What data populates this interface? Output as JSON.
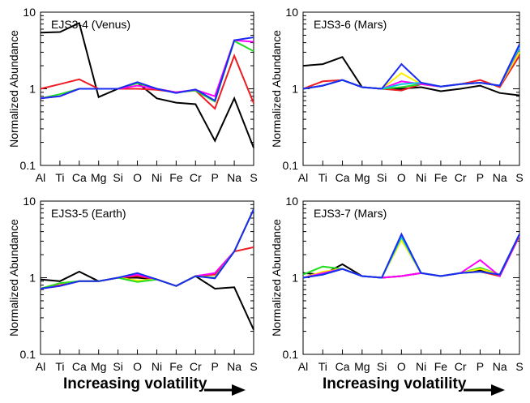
{
  "elements": [
    "Al",
    "Ti",
    "Ca",
    "Mg",
    "Si",
    "O",
    "Ni",
    "Fe",
    "Cr",
    "P",
    "Na",
    "S"
  ],
  "ylabel": "Normalized Abundance",
  "xlabel": "Increasing volatility",
  "y_ticks": [
    "0.1",
    "1",
    "10"
  ],
  "colors": {
    "black": "#000000",
    "red": "#ee1c24",
    "green": "#22dd22",
    "blue": "#1a2cf0",
    "magenta": "#ff00ff",
    "yellow": "#ffee00",
    "cyan": "#00c8e0"
  },
  "chart_data": [
    {
      "type": "line",
      "title": "EJS3-4 (Venus)",
      "ylabel": "Normalized Abundance",
      "yscale": "log",
      "ylim": [
        0.1,
        10
      ],
      "categories": [
        "Al",
        "Ti",
        "Ca",
        "Mg",
        "Si",
        "O",
        "Ni",
        "Fe",
        "Cr",
        "P",
        "Na",
        "S"
      ],
      "series": [
        {
          "name": "black",
          "color": "black",
          "values": [
            5.4,
            5.5,
            7.2,
            0.78,
            1.0,
            1.2,
            0.75,
            0.66,
            0.63,
            0.21,
            0.75,
            0.17
          ]
        },
        {
          "name": "red",
          "color": "red",
          "values": [
            1.0,
            1.15,
            1.33,
            1.0,
            1.0,
            1.0,
            0.97,
            0.9,
            0.95,
            0.55,
            2.7,
            0.65
          ]
        },
        {
          "name": "green",
          "color": "green",
          "values": [
            0.75,
            0.85,
            1.0,
            1.0,
            1.0,
            1.18,
            1.0,
            0.9,
            0.95,
            0.68,
            4.2,
            3.1
          ]
        },
        {
          "name": "magenta",
          "color": "magenta",
          "values": [
            0.75,
            0.8,
            1.0,
            1.0,
            1.0,
            1.1,
            1.0,
            0.9,
            0.97,
            0.8,
            4.3,
            4.1
          ]
        },
        {
          "name": "blue",
          "color": "blue",
          "values": [
            0.75,
            0.8,
            1.0,
            1.0,
            1.0,
            1.22,
            1.0,
            0.88,
            0.98,
            0.7,
            4.3,
            4.7
          ]
        }
      ]
    },
    {
      "type": "line",
      "title": "EJS3-6 (Mars)",
      "ylabel": "Normalized Abundance",
      "yscale": "log",
      "ylim": [
        0.1,
        10
      ],
      "categories": [
        "Al",
        "Ti",
        "Ca",
        "Mg",
        "Si",
        "O",
        "Ni",
        "Fe",
        "Cr",
        "P",
        "Na",
        "S"
      ],
      "series": [
        {
          "name": "black",
          "color": "black",
          "values": [
            2.0,
            2.1,
            2.6,
            1.05,
            1.0,
            1.0,
            1.05,
            0.93,
            1.0,
            1.1,
            0.88,
            0.82
          ]
        },
        {
          "name": "red",
          "color": "red",
          "values": [
            1.0,
            1.25,
            1.3,
            1.05,
            1.0,
            0.95,
            1.15,
            1.07,
            1.15,
            1.3,
            1.05,
            2.7
          ]
        },
        {
          "name": "green",
          "color": "green",
          "values": [
            1.0,
            1.1,
            1.3,
            1.05,
            1.0,
            1.05,
            1.15,
            1.07,
            1.15,
            1.2,
            1.1,
            3.2
          ]
        },
        {
          "name": "yellow",
          "color": "yellow",
          "values": [
            1.0,
            1.1,
            1.3,
            1.05,
            1.0,
            1.6,
            1.15,
            1.07,
            1.15,
            1.2,
            1.1,
            3.0
          ]
        },
        {
          "name": "magenta",
          "color": "magenta",
          "values": [
            1.0,
            1.1,
            1.3,
            1.05,
            1.0,
            1.25,
            1.15,
            1.07,
            1.15,
            1.2,
            1.1,
            3.4
          ]
        },
        {
          "name": "cyan",
          "color": "cyan",
          "values": [
            1.0,
            1.1,
            1.3,
            1.05,
            1.0,
            1.15,
            1.2,
            1.07,
            1.15,
            1.2,
            1.1,
            3.5
          ]
        },
        {
          "name": "blue",
          "color": "blue",
          "values": [
            1.0,
            1.1,
            1.3,
            1.05,
            1.0,
            2.1,
            1.2,
            1.07,
            1.15,
            1.2,
            1.1,
            3.8
          ]
        }
      ]
    },
    {
      "type": "line",
      "title": "EJS3-5 (Earth)",
      "ylabel": "Normalized Abundance",
      "yscale": "log",
      "ylim": [
        0.1,
        10
      ],
      "categories": [
        "Al",
        "Ti",
        "Ca",
        "Mg",
        "Si",
        "O",
        "Ni",
        "Fe",
        "Cr",
        "P",
        "Na",
        "S"
      ],
      "series": [
        {
          "name": "black",
          "color": "black",
          "values": [
            0.95,
            0.9,
            1.2,
            0.9,
            1.0,
            1.0,
            0.95,
            0.78,
            1.05,
            0.72,
            0.75,
            0.21
          ]
        },
        {
          "name": "red",
          "color": "red",
          "values": [
            0.72,
            0.8,
            0.9,
            0.9,
            1.0,
            1.05,
            0.95,
            0.78,
            1.05,
            1.1,
            2.2,
            2.5
          ]
        },
        {
          "name": "magenta",
          "color": "magenta",
          "values": [
            0.72,
            0.78,
            0.9,
            0.9,
            1.0,
            1.1,
            0.95,
            0.78,
            1.05,
            1.15,
            2.2,
            7.8
          ]
        },
        {
          "name": "yellow",
          "color": "yellow",
          "values": [
            0.72,
            0.85,
            0.9,
            0.9,
            1.0,
            0.92,
            0.95,
            0.78,
            1.05,
            1.0,
            2.2,
            7.8
          ]
        },
        {
          "name": "green",
          "color": "green",
          "values": [
            0.72,
            0.85,
            0.9,
            0.9,
            1.0,
            0.88,
            0.95,
            0.78,
            1.05,
            1.0,
            2.2,
            7.8
          ]
        },
        {
          "name": "blue",
          "color": "blue",
          "values": [
            0.72,
            0.78,
            0.9,
            0.9,
            1.0,
            1.15,
            0.95,
            0.78,
            1.05,
            0.98,
            2.2,
            7.8
          ]
        }
      ]
    },
    {
      "type": "line",
      "title": "EJS3-7 (Mars)",
      "ylabel": "Normalized Abundance",
      "yscale": "log",
      "ylim": [
        0.1,
        10
      ],
      "categories": [
        "Al",
        "Ti",
        "Ca",
        "Mg",
        "Si",
        "O",
        "Ni",
        "Fe",
        "Cr",
        "P",
        "Na",
        "S"
      ],
      "series": [
        {
          "name": "black",
          "color": "black",
          "values": [
            1.15,
            1.1,
            1.5,
            1.05,
            1.0,
            1.05,
            1.15,
            1.05,
            1.15,
            1.25,
            1.05,
            3.6
          ]
        },
        {
          "name": "red",
          "color": "red",
          "values": [
            1.0,
            1.1,
            1.3,
            1.05,
            1.0,
            1.05,
            1.15,
            1.05,
            1.15,
            1.2,
            1.05,
            3.5
          ]
        },
        {
          "name": "green",
          "color": "green",
          "values": [
            1.1,
            1.4,
            1.3,
            1.05,
            1.0,
            3.2,
            1.15,
            1.05,
            1.15,
            1.35,
            1.1,
            3.6
          ]
        },
        {
          "name": "yellow",
          "color": "yellow",
          "values": [
            1.0,
            1.2,
            1.3,
            1.05,
            1.0,
            3.1,
            1.15,
            1.05,
            1.15,
            1.3,
            1.1,
            3.6
          ]
        },
        {
          "name": "magenta",
          "color": "magenta",
          "values": [
            1.0,
            1.15,
            1.3,
            1.05,
            1.0,
            1.05,
            1.15,
            1.05,
            1.15,
            1.7,
            1.05,
            3.6
          ]
        },
        {
          "name": "cyan",
          "color": "cyan",
          "values": [
            1.0,
            1.1,
            1.3,
            1.05,
            1.0,
            3.4,
            1.15,
            1.05,
            1.15,
            1.2,
            1.1,
            3.7
          ]
        },
        {
          "name": "blue",
          "color": "blue",
          "values": [
            1.0,
            1.1,
            1.3,
            1.05,
            1.0,
            3.7,
            1.15,
            1.05,
            1.15,
            1.2,
            1.1,
            3.7
          ]
        }
      ]
    }
  ]
}
